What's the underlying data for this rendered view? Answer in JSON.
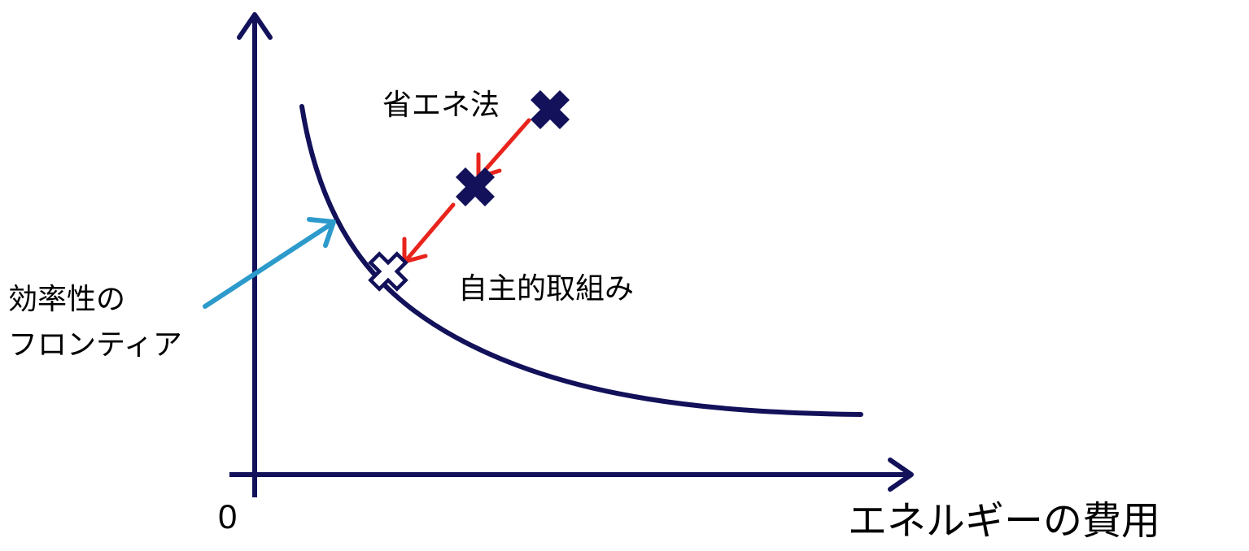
{
  "diagram": {
    "colors": {
      "axis": "#12115A",
      "curve": "#12115A",
      "marker": "#12115A",
      "marker_open_fill": "#ffffff",
      "arrow_red": "#E8241C",
      "arrow_blue": "#2C9ACB"
    },
    "icons": {
      "filled_marker": "bold-x-mark",
      "open_marker": "outlined-x-mark"
    },
    "labels": {
      "origin": "0",
      "x_axis": "エネルギーの費用",
      "regulation": "省エネ法",
      "voluntary": "自主的取組み",
      "frontier_line1": "効率性の",
      "frontier_line2": "フロンティア"
    }
  }
}
